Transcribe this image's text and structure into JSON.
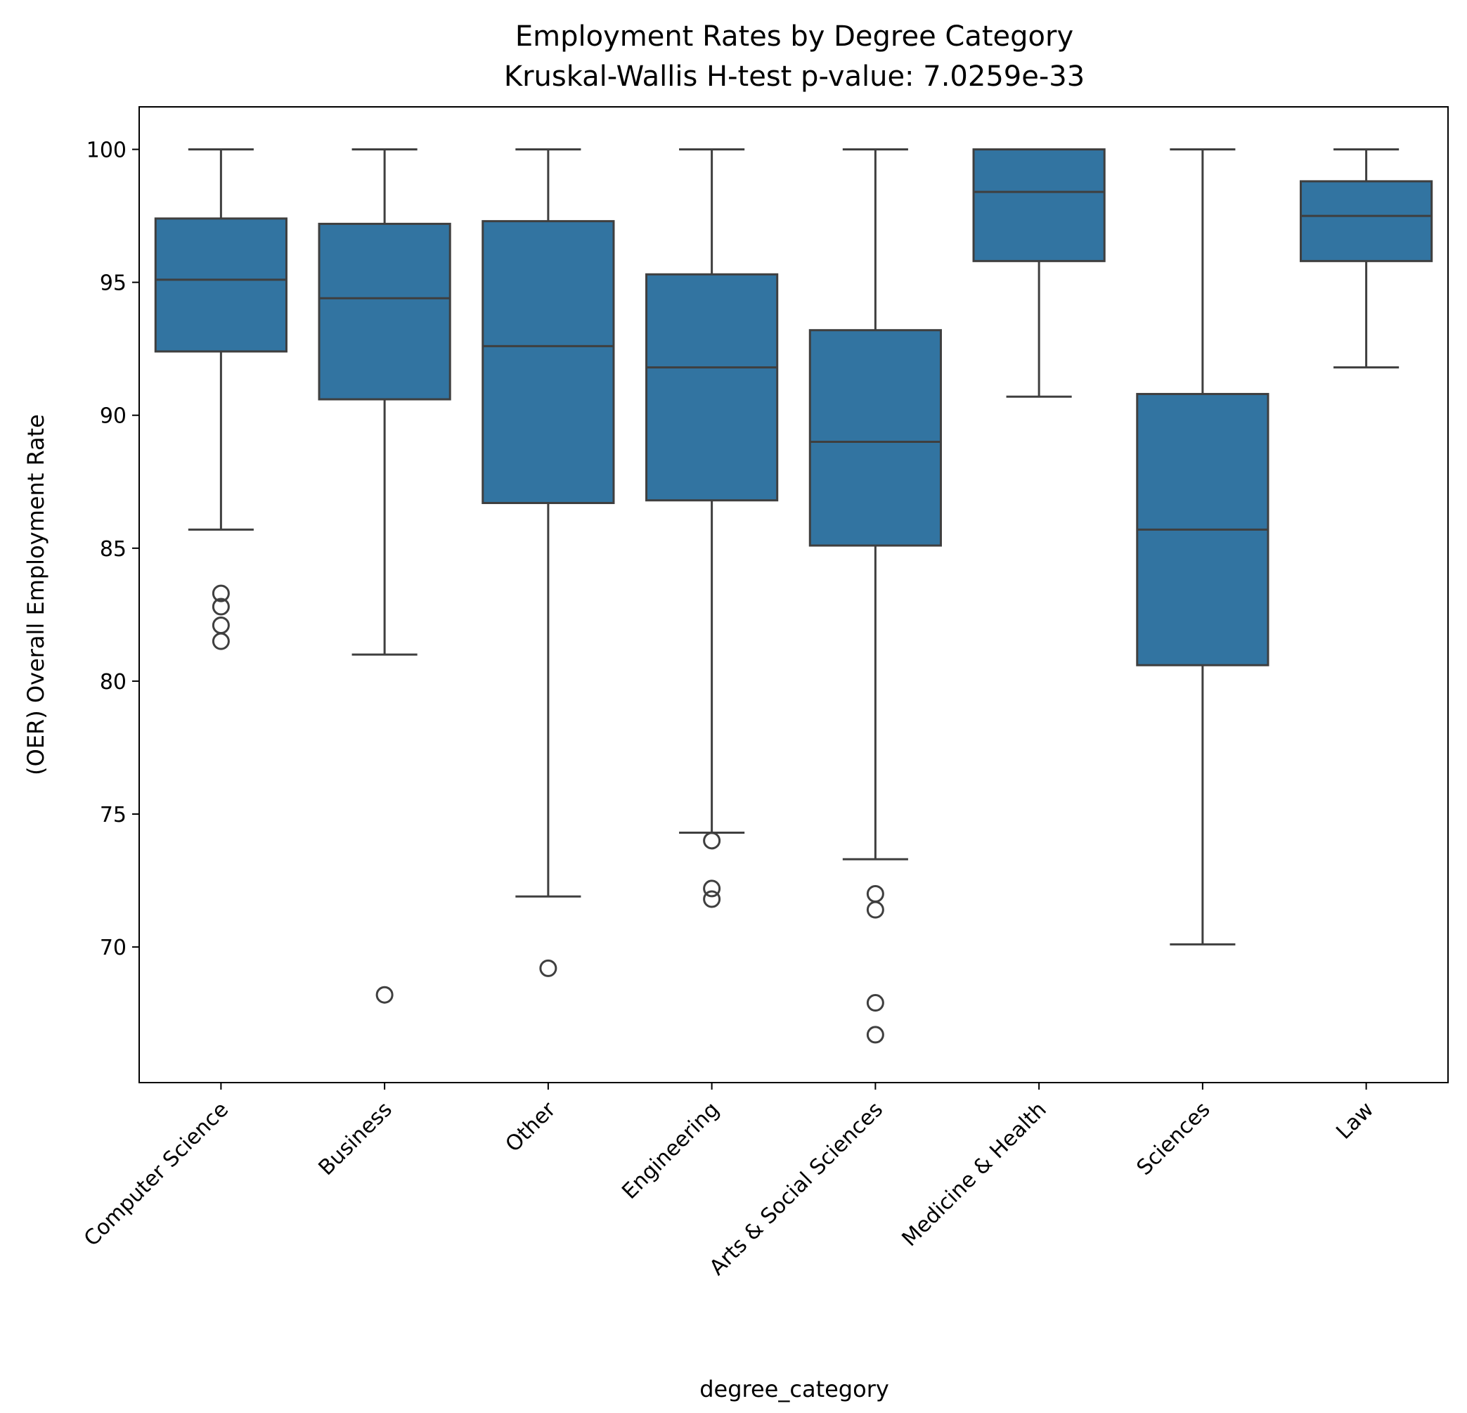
{
  "chart_data": {
    "type": "box",
    "title": "Employment Rates by Degree Category",
    "subtitle": "Kruskal-Wallis H-test p-value: 7.0259e-33",
    "xlabel": "degree_category",
    "ylabel": "(OER) Overall Employment Rate",
    "ylim": [
      64.9,
      101.6
    ],
    "yticks": [
      70,
      75,
      80,
      85,
      90,
      95,
      100
    ],
    "grid": false,
    "box_color": "#3274a1",
    "edge_color": "#3f3f3f",
    "categories": [
      "Computer Science",
      "Business",
      "Other",
      "Engineering",
      "Arts & Social Sciences",
      "Medicine & Health",
      "Sciences",
      "Law"
    ],
    "boxes": [
      {
        "whislo": 85.7,
        "q1": 92.4,
        "med": 95.1,
        "q3": 97.4,
        "whishi": 100,
        "fliers": [
          83.3,
          82.8,
          82.1,
          81.5
        ]
      },
      {
        "whislo": 81.0,
        "q1": 90.6,
        "med": 94.4,
        "q3": 97.2,
        "whishi": 100,
        "fliers": [
          68.2
        ]
      },
      {
        "whislo": 71.9,
        "q1": 86.7,
        "med": 92.6,
        "q3": 97.3,
        "whishi": 100,
        "fliers": [
          69.2
        ]
      },
      {
        "whislo": 74.3,
        "q1": 86.8,
        "med": 91.8,
        "q3": 95.3,
        "whishi": 100,
        "fliers": [
          74.0,
          72.2,
          71.8
        ]
      },
      {
        "whislo": 73.3,
        "q1": 85.1,
        "med": 89.0,
        "q3": 93.2,
        "whishi": 100,
        "fliers": [
          72.0,
          71.4,
          67.9,
          66.7
        ]
      },
      {
        "whislo": 90.7,
        "q1": 95.8,
        "med": 98.4,
        "q3": 100,
        "whishi": 100,
        "fliers": []
      },
      {
        "whislo": 70.1,
        "q1": 80.6,
        "med": 85.7,
        "q3": 90.8,
        "whishi": 100,
        "fliers": []
      },
      {
        "whislo": 91.8,
        "q1": 95.8,
        "med": 97.5,
        "q3": 98.8,
        "whishi": 100,
        "fliers": []
      }
    ]
  }
}
